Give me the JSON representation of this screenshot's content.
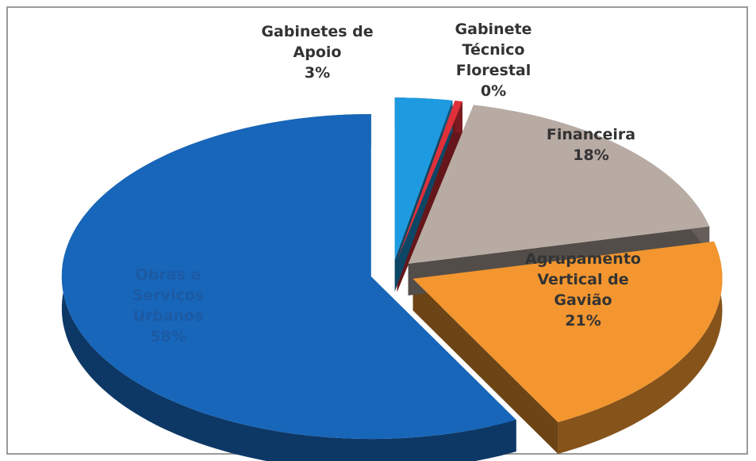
{
  "chart_data": {
    "type": "pie3d",
    "categories": [
      "Gabinetes de Apoio",
      "Gabinete Técnico Florestal",
      "Financeira",
      "Agrupamento Vertical de Gavião",
      "Obras e Serviços Urbanos"
    ],
    "values": [
      3,
      0.4,
      18,
      21,
      58
    ],
    "value_labels": [
      "3%",
      "0%",
      "18%",
      "21%",
      "58%"
    ],
    "colors": [
      "#1e9be0",
      "#e0303a",
      "#b8aba3",
      "#f3962f",
      "#1766ba"
    ]
  }
}
